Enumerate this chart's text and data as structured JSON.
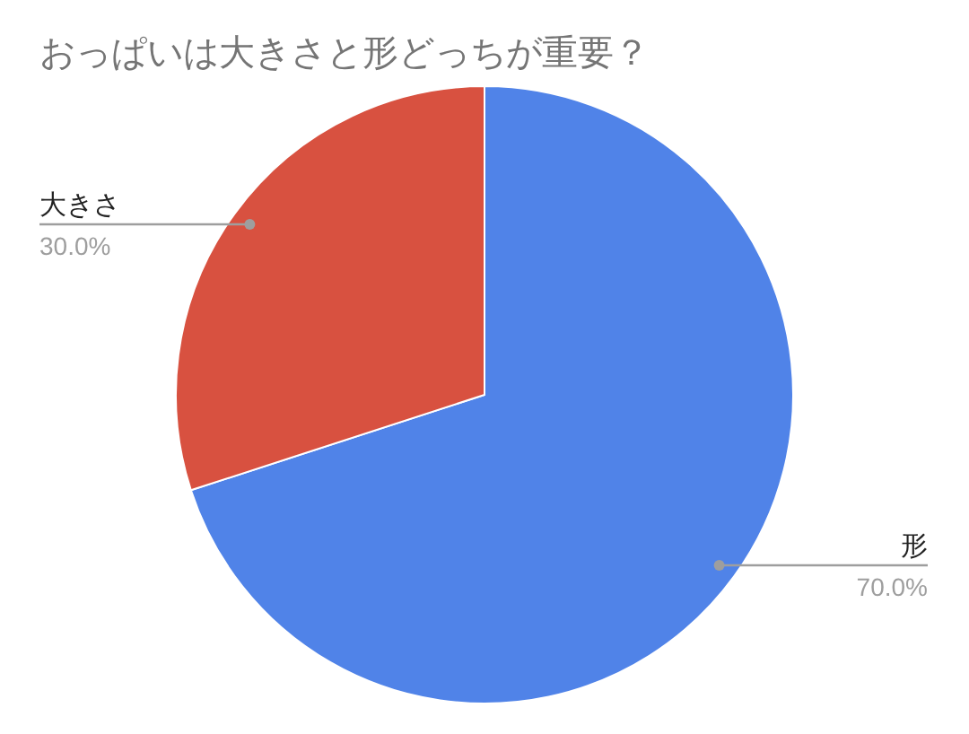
{
  "chart_data": {
    "type": "pie",
    "title": "おっぱいは大きさと形どっちが重要？",
    "categories": [
      "形",
      "大きさ"
    ],
    "values": [
      70.0,
      30.0
    ],
    "colors": [
      "#5083e8",
      "#d85140"
    ],
    "value_labels": [
      "70.0%",
      "30.0%"
    ]
  }
}
